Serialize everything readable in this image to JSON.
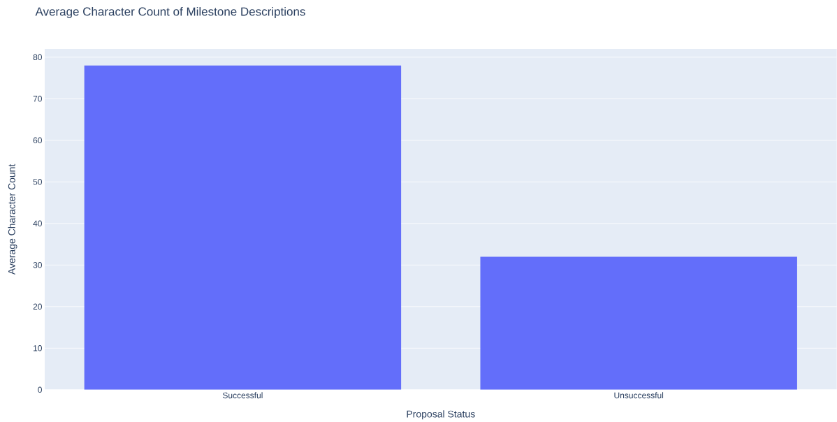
{
  "chart_data": {
    "type": "bar",
    "title": "Average Character Count of Milestone Descriptions",
    "xlabel": "Proposal Status",
    "ylabel": "Average Character Count",
    "categories": [
      "Successful",
      "Unsuccessful"
    ],
    "values": [
      78,
      32
    ],
    "color": "#636efa",
    "ylim": [
      0,
      82
    ],
    "yticks": [
      0,
      10,
      20,
      30,
      40,
      50,
      60,
      70,
      80
    ],
    "grid": "y"
  }
}
